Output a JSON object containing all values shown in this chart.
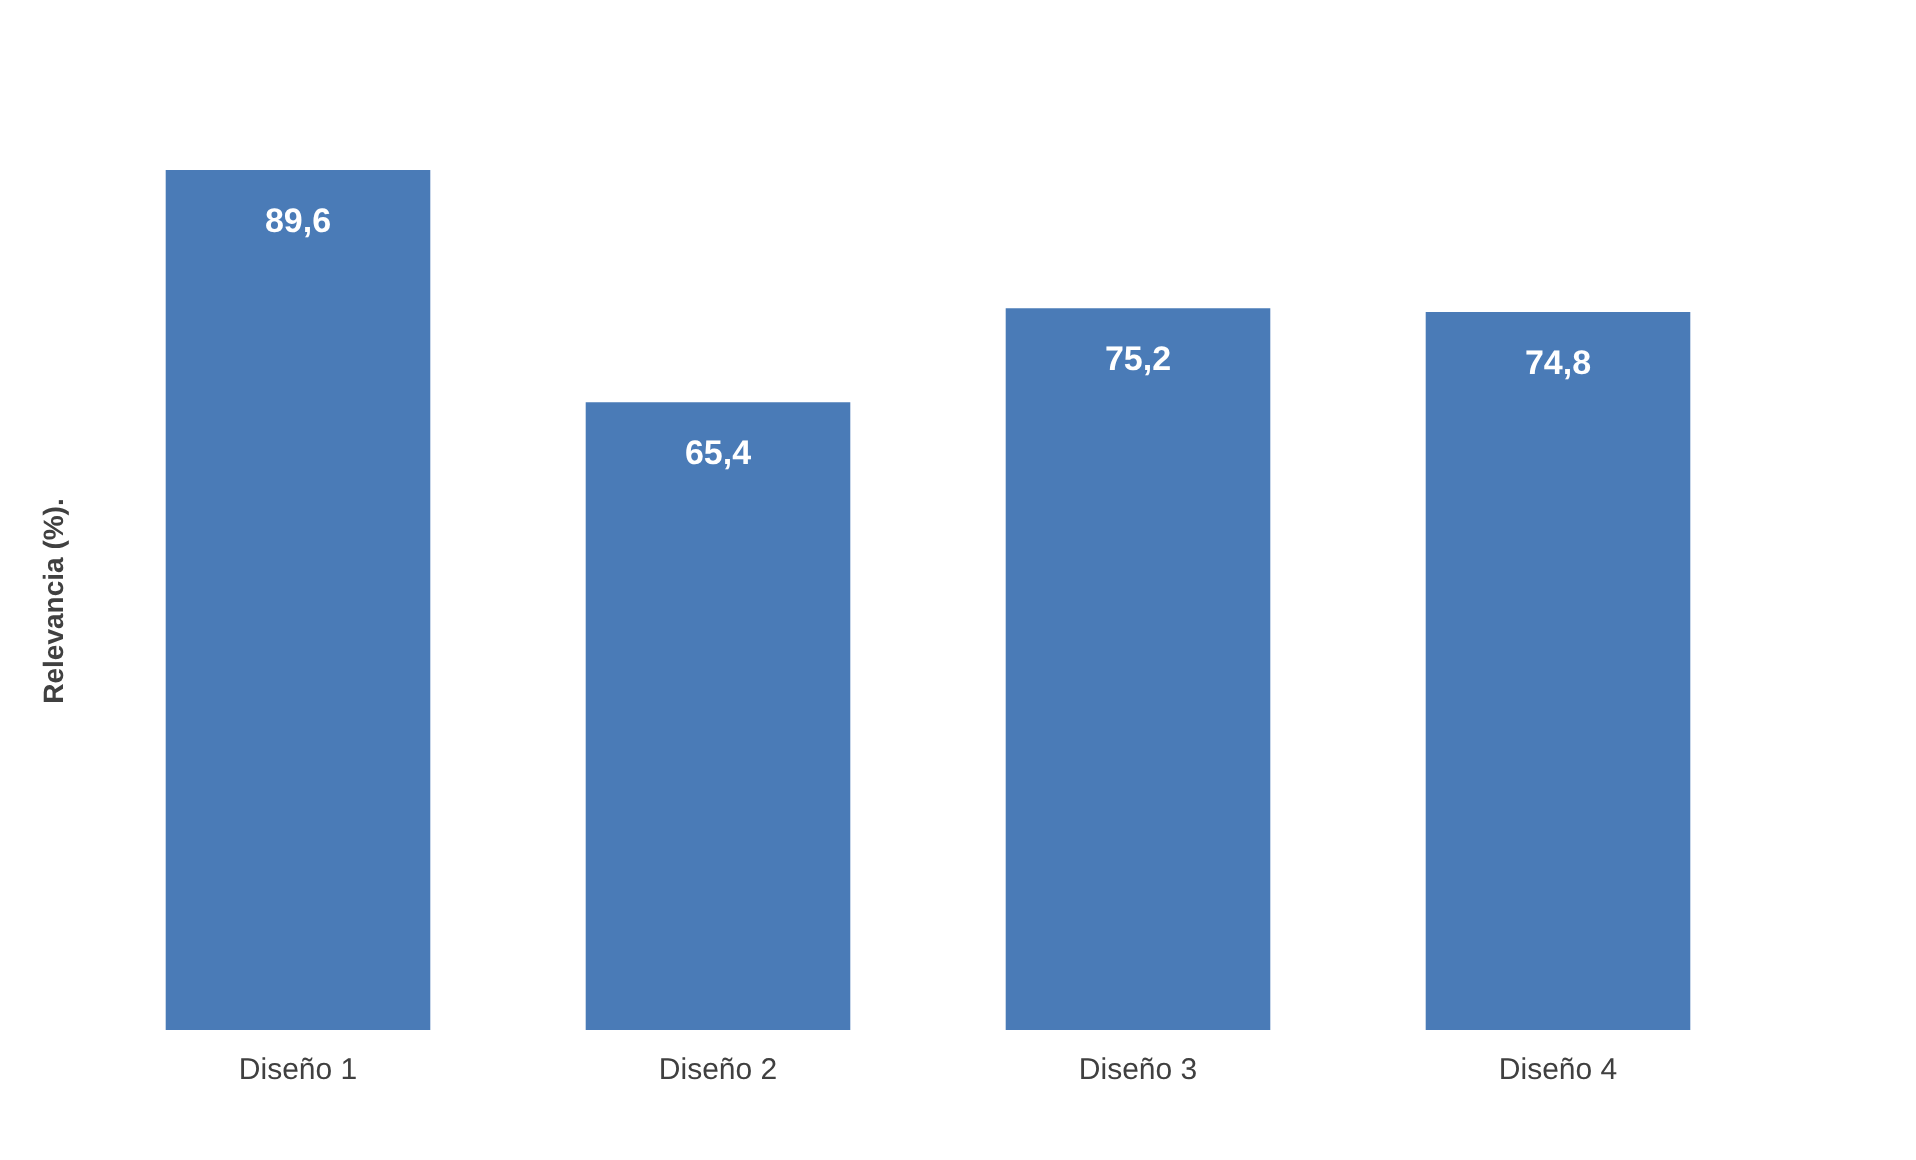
{
  "chart_data": {
    "type": "bar",
    "ylabel": "Relevancia (%).",
    "categories": [
      "Diseño 1",
      "Diseño 2",
      "Diseño 3",
      "Diseño 4"
    ],
    "values": [
      89.6,
      65.4,
      75.2,
      74.8
    ],
    "value_labels": [
      "89,6",
      "65,4",
      "75,2",
      "74,8"
    ],
    "color": "#4a7bb7",
    "grid": false,
    "tick_labels": "x"
  }
}
